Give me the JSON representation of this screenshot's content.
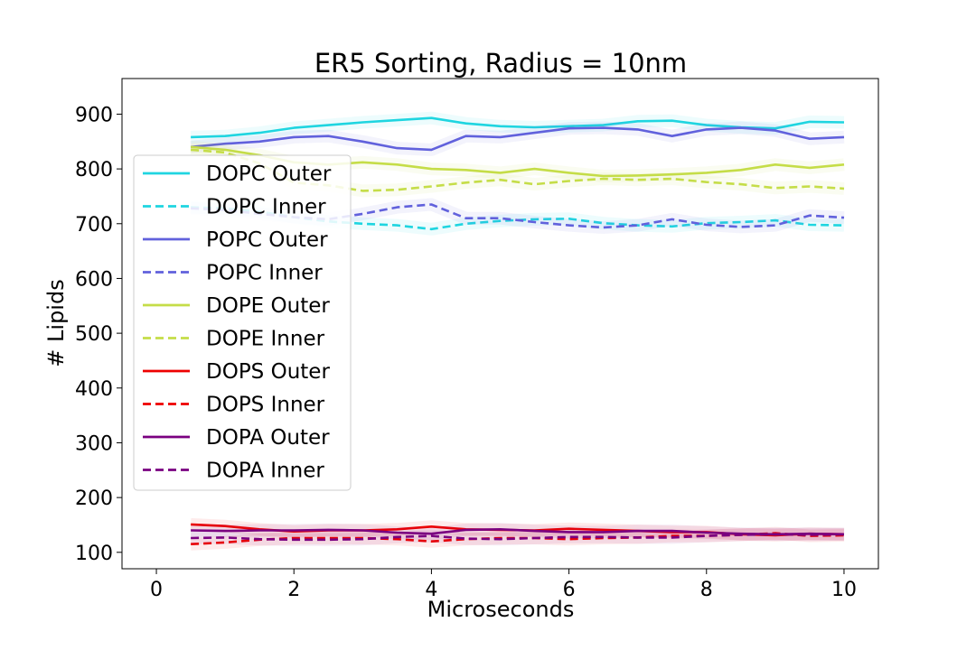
{
  "chart_data": {
    "type": "line",
    "title": "ER5 Sorting, Radius = 10nm",
    "xlabel": "Microseconds",
    "ylabel": "# Lipids",
    "xlim": [
      -0.5,
      10.5
    ],
    "ylim": [
      70,
      965
    ],
    "xticks": [
      0,
      2,
      4,
      6,
      8,
      10
    ],
    "yticks": [
      100,
      200,
      300,
      400,
      500,
      600,
      700,
      800,
      900
    ],
    "legend_position": "center-left",
    "grid": false,
    "series": [
      {
        "name": "DOPC Outer",
        "color": "#1fd5e0",
        "dash": "solid",
        "x": [
          0.5,
          1,
          1.5,
          2,
          2.5,
          3,
          3.5,
          4,
          4.5,
          5,
          5.5,
          6,
          6.5,
          7,
          7.5,
          8,
          8.5,
          9,
          9.5,
          10
        ],
        "y": [
          858,
          860,
          866,
          875,
          880,
          885,
          889,
          893,
          883,
          878,
          876,
          878,
          880,
          887,
          888,
          880,
          876,
          874,
          886,
          885
        ]
      },
      {
        "name": "DOPC Inner",
        "color": "#1fd5e0",
        "dash": "dashed",
        "x": [
          0.5,
          1,
          1.5,
          2,
          2.5,
          3,
          3.5,
          4,
          4.5,
          5,
          5.5,
          6,
          6.5,
          7,
          7.5,
          8,
          8.5,
          9,
          9.5,
          10
        ],
        "y": [
          730,
          728,
          722,
          712,
          704,
          700,
          697,
          690,
          700,
          705,
          708,
          709,
          701,
          697,
          695,
          701,
          703,
          706,
          698,
          697
        ]
      },
      {
        "name": "POPC Outer",
        "color": "#6161dc",
        "dash": "solid",
        "x": [
          0.5,
          1,
          1.5,
          2,
          2.5,
          3,
          3.5,
          4,
          4.5,
          5,
          5.5,
          6,
          6.5,
          7,
          7.5,
          8,
          8.5,
          9,
          9.5,
          10
        ],
        "y": [
          840,
          846,
          850,
          858,
          860,
          850,
          838,
          835,
          860,
          858,
          866,
          874,
          875,
          872,
          860,
          872,
          875,
          870,
          855,
          858
        ]
      },
      {
        "name": "POPC Inner",
        "color": "#6161dc",
        "dash": "dashed",
        "x": [
          0.5,
          1,
          1.5,
          2,
          2.5,
          3,
          3.5,
          4,
          4.5,
          5,
          5.5,
          6,
          6.5,
          7,
          7.5,
          8,
          8.5,
          9,
          9.5,
          10
        ],
        "y": [
          728,
          725,
          718,
          712,
          708,
          718,
          730,
          735,
          710,
          710,
          703,
          697,
          693,
          697,
          708,
          698,
          694,
          697,
          715,
          711
        ]
      },
      {
        "name": "DOPE Outer",
        "color": "#c5dd48",
        "dash": "solid",
        "x": [
          0.5,
          1,
          1.5,
          2,
          2.5,
          3,
          3.5,
          4,
          4.5,
          5,
          5.5,
          6,
          6.5,
          7,
          7.5,
          8,
          8.5,
          9,
          9.5,
          10
        ],
        "y": [
          840,
          835,
          825,
          812,
          808,
          812,
          808,
          800,
          798,
          793,
          800,
          793,
          787,
          788,
          790,
          793,
          798,
          808,
          802,
          808
        ]
      },
      {
        "name": "DOPE Inner",
        "color": "#c5dd48",
        "dash": "dashed",
        "x": [
          0.5,
          1,
          1.5,
          2,
          2.5,
          3,
          3.5,
          4,
          4.5,
          5,
          5.5,
          6,
          6.5,
          7,
          7.5,
          8,
          8.5,
          9,
          9.5,
          10
        ],
        "y": [
          835,
          830,
          810,
          775,
          770,
          760,
          762,
          768,
          775,
          780,
          772,
          778,
          782,
          780,
          782,
          776,
          772,
          765,
          768,
          764
        ]
      },
      {
        "name": "DOPS Outer",
        "color": "#ee0000",
        "dash": "solid",
        "x": [
          0.5,
          1,
          1.5,
          2,
          2.5,
          3,
          3.5,
          4,
          4.5,
          5,
          5.5,
          6,
          6.5,
          7,
          7.5,
          8,
          8.5,
          9,
          9.5,
          10
        ],
        "y": [
          151,
          148,
          142,
          138,
          140,
          140,
          142,
          147,
          142,
          141,
          140,
          143,
          141,
          139,
          137,
          137,
          133,
          131,
          134,
          133
        ]
      },
      {
        "name": "DOPS Inner",
        "color": "#ee0000",
        "dash": "dashed",
        "x": [
          0.5,
          1,
          1.5,
          2,
          2.5,
          3,
          3.5,
          4,
          4.5,
          5,
          5.5,
          6,
          6.5,
          7,
          7.5,
          8,
          8.5,
          9,
          9.5,
          10
        ],
        "y": [
          115,
          118,
          123,
          126,
          126,
          126,
          124,
          120,
          124,
          126,
          126,
          124,
          126,
          127,
          130,
          130,
          132,
          135,
          130,
          131
        ]
      },
      {
        "name": "DOPA Outer",
        "color": "#7a0080",
        "dash": "solid",
        "x": [
          0.5,
          1,
          1.5,
          2,
          2.5,
          3,
          3.5,
          4,
          4.5,
          5,
          5.5,
          6,
          6.5,
          7,
          7.5,
          8,
          8.5,
          9,
          9.5,
          10
        ],
        "y": [
          140,
          139,
          140,
          140,
          141,
          140,
          136,
          134,
          141,
          142,
          139,
          137,
          137,
          139,
          139,
          136,
          134,
          133,
          134,
          133
        ]
      },
      {
        "name": "DOPA Inner",
        "color": "#7a0080",
        "dash": "dashed",
        "x": [
          0.5,
          1,
          1.5,
          2,
          2.5,
          3,
          3.5,
          4,
          4.5,
          5,
          5.5,
          6,
          6.5,
          7,
          7.5,
          8,
          8.5,
          9,
          9.5,
          10
        ],
        "y": [
          126,
          127,
          124,
          123,
          123,
          124,
          128,
          130,
          125,
          124,
          126,
          128,
          128,
          127,
          127,
          130,
          132,
          133,
          132,
          133
        ]
      }
    ]
  }
}
